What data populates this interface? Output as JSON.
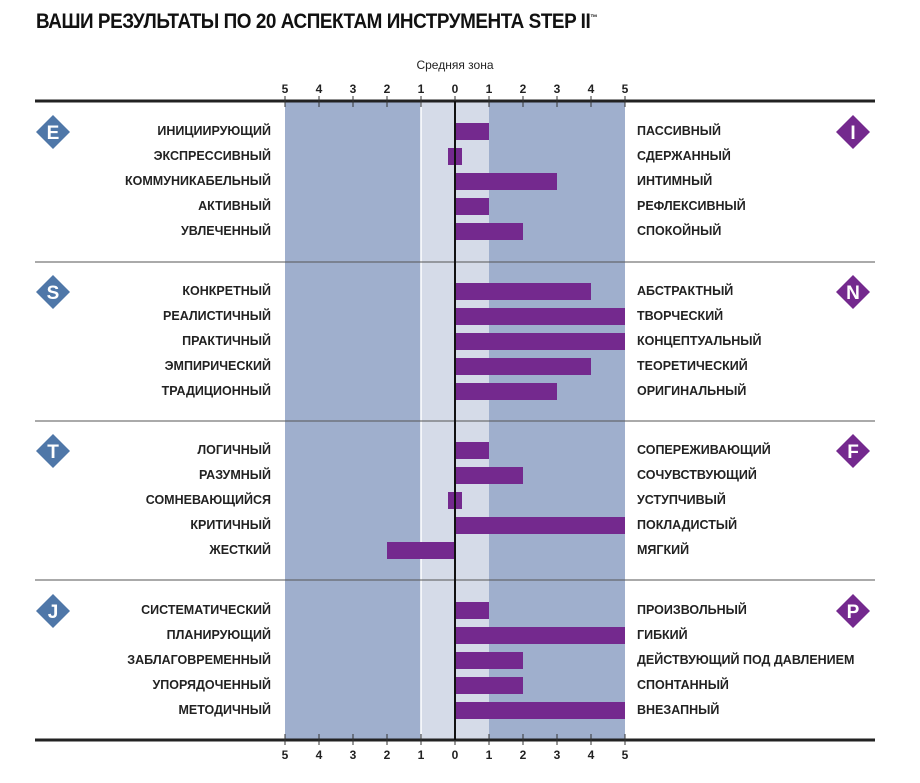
{
  "title": "ВАШИ РЕЗУЛЬТАТЫ ПО 20 АСПЕКТАМ ИНСТРУМЕНТА STEP II",
  "trademark": "™",
  "chart_data": {
    "type": "bar",
    "orientation": "horizontal-bipolar",
    "title": "ВАШИ РЕЗУЛЬТАТЫ ПО 20 АСПЕКТАМ ИНСТРУМЕНТА STEP II™",
    "mid_zone_label": "Средняя зона",
    "tick_labels": [
      "5",
      "4",
      "3",
      "2",
      "1",
      "0",
      "1",
      "2",
      "3",
      "4",
      "5"
    ],
    "xlim": [
      -5,
      5
    ],
    "mid_zone": [
      -1,
      1
    ],
    "colors": {
      "bar": "#74298e",
      "outer_zone": "#9fafcd",
      "mid_zone": "#d5dbe8",
      "left_badge": "#4f77a8",
      "right_badge": "#74298e"
    },
    "groups": [
      {
        "left": "E",
        "right": "I",
        "rows": [
          {
            "left": "ИНИЦИИРУЮЩИЙ",
            "right": "ПАССИВНЫЙ",
            "value": 1
          },
          {
            "left": "ЭКСПРЕССИВНЫЙ",
            "right": "СДЕРЖАННЫЙ",
            "value": 0
          },
          {
            "left": "КОММУНИКАБЕЛЬНЫЙ",
            "right": "ИНТИМНЫЙ",
            "value": 3
          },
          {
            "left": "АКТИВНЫЙ",
            "right": "РЕФЛЕКСИВНЫЙ",
            "value": 1
          },
          {
            "left": "УВЛЕЧЕННЫЙ",
            "right": "СПОКОЙНЫЙ",
            "value": 2
          }
        ]
      },
      {
        "left": "S",
        "right": "N",
        "rows": [
          {
            "left": "КОНКРЕТНЫЙ",
            "right": "АБСТРАКТНЫЙ",
            "value": 4
          },
          {
            "left": "РЕАЛИСТИЧНЫЙ",
            "right": "ТВОРЧЕСКИЙ",
            "value": 5
          },
          {
            "left": "ПРАКТИЧНЫЙ",
            "right": "КОНЦЕПТУАЛЬНЫЙ",
            "value": 5
          },
          {
            "left": "ЭМПИРИЧЕСКИЙ",
            "right": "ТЕОРЕТИЧЕСКИЙ",
            "value": 4
          },
          {
            "left": "ТРАДИЦИОННЫЙ",
            "right": "ОРИГИНАЛЬНЫЙ",
            "value": 3
          }
        ]
      },
      {
        "left": "T",
        "right": "F",
        "rows": [
          {
            "left": "ЛОГИЧНЫЙ",
            "right": "СОПЕРЕЖИВАЮЩИЙ",
            "value": 1
          },
          {
            "left": "РАЗУМНЫЙ",
            "right": "СОЧУВСТВУЮЩИЙ",
            "value": 2
          },
          {
            "left": "СОМНЕВАЮЩИЙСЯ",
            "right": "УСТУПЧИВЫЙ",
            "value": 0
          },
          {
            "left": "КРИТИЧНЫЙ",
            "right": "ПОКЛАДИСТЫЙ",
            "value": 5
          },
          {
            "left": "ЖЕСТКИЙ",
            "right": "МЯГКИЙ",
            "value": -2
          }
        ]
      },
      {
        "left": "J",
        "right": "P",
        "rows": [
          {
            "left": "СИСТЕМАТИЧЕСКИЙ",
            "right": "ПРОИЗВОЛЬНЫЙ",
            "value": 1
          },
          {
            "left": "ПЛАНИРУЮЩИЙ",
            "right": "ГИБКИЙ",
            "value": 5
          },
          {
            "left": "ЗАБЛАГОВРЕМЕННЫЙ",
            "right": "ДЕЙСТВУЮЩИЙ ПОД ДАВЛЕНИЕМ",
            "value": 2
          },
          {
            "left": "УПОРЯДОЧЕННЫЙ",
            "right": "СПОНТАННЫЙ",
            "value": 2
          },
          {
            "left": "МЕТОДИЧНЫЙ",
            "right": "ВНЕЗАПНЫЙ",
            "value": 5
          }
        ]
      }
    ]
  }
}
